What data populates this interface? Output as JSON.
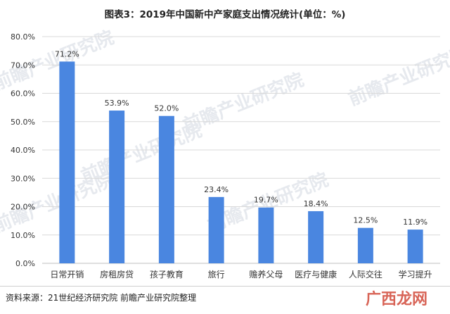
{
  "title": "图表3：2019年中国新中产家庭支出情况统计(单位：%)",
  "source": "资料来源：21世纪经济研究院 前瞻产业研究院整理",
  "watermarks": [
    "前瞻产业研究院",
    "广西龙网"
  ],
  "colors": {
    "bar": "#4a86e0",
    "grid": "#d9d9d9",
    "axis": "#bfbfbf",
    "text": "#333333"
  },
  "chart_data": {
    "type": "bar",
    "title": "图表3：2019年中国新中产家庭支出情况统计(单位：%)",
    "categories": [
      "日常开销",
      "房租房贷",
      "孩子教育",
      "旅行",
      "赡养父母",
      "医疗与健康",
      "人际交往",
      "学习提升"
    ],
    "values": [
      71.2,
      53.9,
      52.0,
      23.4,
      19.7,
      18.4,
      12.5,
      11.9
    ],
    "value_labels": [
      "71.2%",
      "53.9%",
      "52.0%",
      "23.4%",
      "19.7%",
      "18.4%",
      "12.5%",
      "11.9%"
    ],
    "yticks": [
      "0.0%",
      "10.0%",
      "20.0%",
      "30.0%",
      "40.0%",
      "50.0%",
      "60.0%",
      "70.0%",
      "80.0%"
    ],
    "ylim": [
      0,
      80
    ],
    "ystep": 10,
    "grid": true,
    "legend": "none"
  }
}
